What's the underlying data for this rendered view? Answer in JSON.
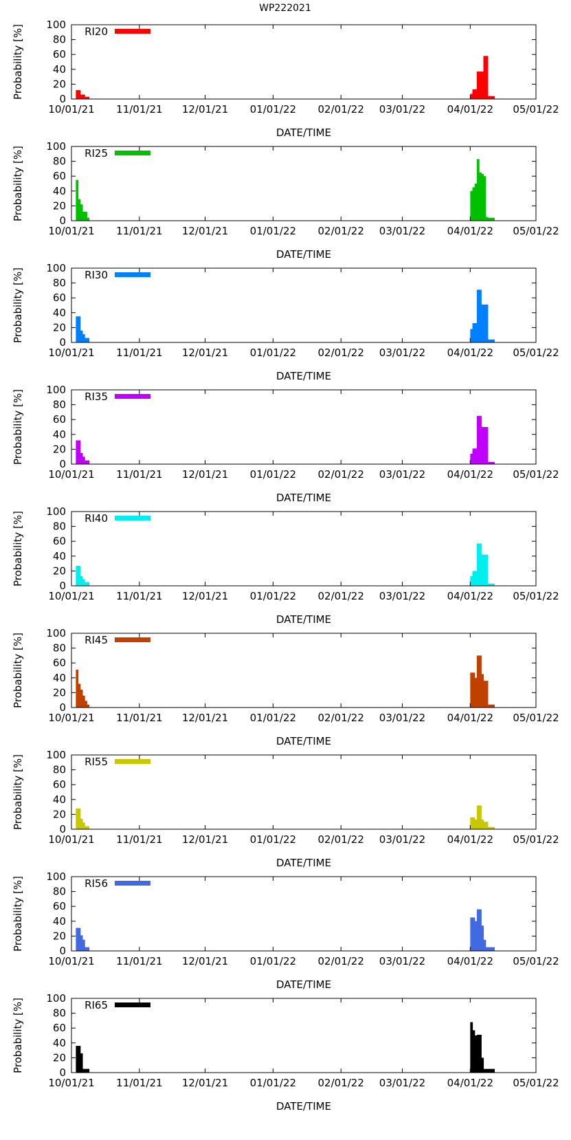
{
  "title": "WP222021",
  "chart_data": [
    {
      "type": "bar",
      "legend": "RI20",
      "color": "#ff0000",
      "xlabel": "DATE/TIME",
      "ylabel": "Probability [%]",
      "ylim": [
        0,
        100
      ],
      "yticks": [
        0,
        20,
        40,
        60,
        80,
        100
      ],
      "xticks": [
        "10/01/21",
        "11/01/21",
        "12/01/21",
        "01/01/22",
        "02/01/22",
        "03/01/22",
        "04/01/22",
        "05/01/22"
      ],
      "bars": [
        {
          "x": "10/03/21",
          "y": 12
        },
        {
          "x": "10/04/21",
          "y": 12
        },
        {
          "x": "10/05/21",
          "y": 6
        },
        {
          "x": "10/06/21",
          "y": 6
        },
        {
          "x": "10/07/21",
          "y": 3
        },
        {
          "x": "10/08/21",
          "y": 3
        },
        {
          "x": "04/01/22",
          "y": 7
        },
        {
          "x": "04/02/22",
          "y": 13
        },
        {
          "x": "04/03/22",
          "y": 13
        },
        {
          "x": "04/04/22",
          "y": 37
        },
        {
          "x": "04/05/22",
          "y": 37
        },
        {
          "x": "04/06/22",
          "y": 37
        },
        {
          "x": "04/07/22",
          "y": 58
        },
        {
          "x": "04/08/22",
          "y": 58
        },
        {
          "x": "04/09/22",
          "y": 4
        },
        {
          "x": "04/10/22",
          "y": 4
        },
        {
          "x": "04/11/22",
          "y": 4
        }
      ]
    },
    {
      "type": "bar",
      "legend": "RI25",
      "color": "#00c000",
      "xlabel": "DATE/TIME",
      "ylabel": "Probability [%]",
      "ylim": [
        0,
        100
      ],
      "yticks": [
        0,
        20,
        40,
        60,
        80,
        100
      ],
      "xticks": [
        "10/01/21",
        "11/01/21",
        "12/01/21",
        "01/01/22",
        "02/01/22",
        "03/01/22",
        "04/01/22",
        "05/01/22"
      ],
      "bars": [
        {
          "x": "10/03/21",
          "y": 55
        },
        {
          "x": "10/04/21",
          "y": 29
        },
        {
          "x": "10/05/21",
          "y": 22
        },
        {
          "x": "10/06/21",
          "y": 12
        },
        {
          "x": "10/07/21",
          "y": 12
        },
        {
          "x": "10/08/21",
          "y": 4
        },
        {
          "x": "04/01/22",
          "y": 40
        },
        {
          "x": "04/02/22",
          "y": 45
        },
        {
          "x": "04/03/22",
          "y": 50
        },
        {
          "x": "04/04/22",
          "y": 83
        },
        {
          "x": "04/05/22",
          "y": 65
        },
        {
          "x": "04/06/22",
          "y": 63
        },
        {
          "x": "04/07/22",
          "y": 60
        },
        {
          "x": "04/08/22",
          "y": 5
        },
        {
          "x": "04/09/22",
          "y": 4
        },
        {
          "x": "04/10/22",
          "y": 4
        },
        {
          "x": "04/11/22",
          "y": 4
        }
      ]
    },
    {
      "type": "bar",
      "legend": "RI30",
      "color": "#0080ff",
      "xlabel": "DATE/TIME",
      "ylabel": "Probability [%]",
      "ylim": [
        0,
        100
      ],
      "yticks": [
        0,
        20,
        40,
        60,
        80,
        100
      ],
      "xticks": [
        "10/01/21",
        "11/01/21",
        "12/01/21",
        "01/01/22",
        "02/01/22",
        "03/01/22",
        "04/01/22",
        "05/01/22"
      ],
      "bars": [
        {
          "x": "10/03/21",
          "y": 35
        },
        {
          "x": "10/04/21",
          "y": 35
        },
        {
          "x": "10/05/21",
          "y": 16
        },
        {
          "x": "10/06/21",
          "y": 11
        },
        {
          "x": "10/07/21",
          "y": 6
        },
        {
          "x": "10/08/21",
          "y": 6
        },
        {
          "x": "04/01/22",
          "y": 18
        },
        {
          "x": "04/02/22",
          "y": 26
        },
        {
          "x": "04/03/22",
          "y": 26
        },
        {
          "x": "04/04/22",
          "y": 71
        },
        {
          "x": "04/05/22",
          "y": 71
        },
        {
          "x": "04/06/22",
          "y": 51
        },
        {
          "x": "04/07/22",
          "y": 51
        },
        {
          "x": "04/08/22",
          "y": 51
        },
        {
          "x": "04/09/22",
          "y": 4
        },
        {
          "x": "04/10/22",
          "y": 4
        },
        {
          "x": "04/11/22",
          "y": 4
        }
      ]
    },
    {
      "type": "bar",
      "legend": "RI35",
      "color": "#c000ff",
      "xlabel": "DATE/TIME",
      "ylabel": "Probability [%]",
      "ylim": [
        0,
        100
      ],
      "yticks": [
        0,
        20,
        40,
        60,
        80,
        100
      ],
      "xticks": [
        "10/01/21",
        "11/01/21",
        "12/01/21",
        "01/01/22",
        "02/01/22",
        "03/01/22",
        "04/01/22",
        "05/01/22"
      ],
      "bars": [
        {
          "x": "10/03/21",
          "y": 32
        },
        {
          "x": "10/04/21",
          "y": 32
        },
        {
          "x": "10/05/21",
          "y": 15
        },
        {
          "x": "10/06/21",
          "y": 10
        },
        {
          "x": "10/07/21",
          "y": 5
        },
        {
          "x": "10/08/21",
          "y": 5
        },
        {
          "x": "04/01/22",
          "y": 14
        },
        {
          "x": "04/02/22",
          "y": 21
        },
        {
          "x": "04/03/22",
          "y": 21
        },
        {
          "x": "04/04/22",
          "y": 65
        },
        {
          "x": "04/05/22",
          "y": 65
        },
        {
          "x": "04/06/22",
          "y": 50
        },
        {
          "x": "04/07/22",
          "y": 50
        },
        {
          "x": "04/08/22",
          "y": 50
        },
        {
          "x": "04/09/22",
          "y": 3
        },
        {
          "x": "04/10/22",
          "y": 3
        },
        {
          "x": "04/11/22",
          "y": 3
        }
      ]
    },
    {
      "type": "bar",
      "legend": "RI40",
      "color": "#00eeee",
      "xlabel": "DATE/TIME",
      "ylabel": "Probability [%]",
      "ylim": [
        0,
        100
      ],
      "yticks": [
        0,
        20,
        40,
        60,
        80,
        100
      ],
      "xticks": [
        "10/01/21",
        "11/01/21",
        "12/01/21",
        "01/01/22",
        "02/01/22",
        "03/01/22",
        "04/01/22",
        "05/01/22"
      ],
      "bars": [
        {
          "x": "10/03/21",
          "y": 27
        },
        {
          "x": "10/04/21",
          "y": 27
        },
        {
          "x": "10/05/21",
          "y": 13
        },
        {
          "x": "10/06/21",
          "y": 9
        },
        {
          "x": "10/07/21",
          "y": 5
        },
        {
          "x": "10/08/21",
          "y": 5
        },
        {
          "x": "04/01/22",
          "y": 13
        },
        {
          "x": "04/02/22",
          "y": 20
        },
        {
          "x": "04/03/22",
          "y": 20
        },
        {
          "x": "04/04/22",
          "y": 57
        },
        {
          "x": "04/05/22",
          "y": 57
        },
        {
          "x": "04/06/22",
          "y": 42
        },
        {
          "x": "04/07/22",
          "y": 42
        },
        {
          "x": "04/08/22",
          "y": 42
        },
        {
          "x": "04/09/22",
          "y": 3
        },
        {
          "x": "04/10/22",
          "y": 3
        },
        {
          "x": "04/11/22",
          "y": 3
        }
      ]
    },
    {
      "type": "bar",
      "legend": "RI45",
      "color": "#c04000",
      "xlabel": "DATE/TIME",
      "ylabel": "Probability [%]",
      "ylim": [
        0,
        100
      ],
      "yticks": [
        0,
        20,
        40,
        60,
        80,
        100
      ],
      "xticks": [
        "10/01/21",
        "11/01/21",
        "12/01/21",
        "01/01/22",
        "02/01/22",
        "03/01/22",
        "04/01/22",
        "05/01/22"
      ],
      "bars": [
        {
          "x": "10/03/21",
          "y": 51
        },
        {
          "x": "10/04/21",
          "y": 32
        },
        {
          "x": "10/05/21",
          "y": 24
        },
        {
          "x": "10/06/21",
          "y": 16
        },
        {
          "x": "10/07/21",
          "y": 9
        },
        {
          "x": "10/08/21",
          "y": 4
        },
        {
          "x": "04/01/22",
          "y": 47
        },
        {
          "x": "04/02/22",
          "y": 47
        },
        {
          "x": "04/03/22",
          "y": 40
        },
        {
          "x": "04/04/22",
          "y": 70
        },
        {
          "x": "04/05/22",
          "y": 70
        },
        {
          "x": "04/06/22",
          "y": 45
        },
        {
          "x": "04/07/22",
          "y": 36
        },
        {
          "x": "04/08/22",
          "y": 36
        },
        {
          "x": "04/09/22",
          "y": 4
        },
        {
          "x": "04/10/22",
          "y": 4
        },
        {
          "x": "04/11/22",
          "y": 4
        }
      ]
    },
    {
      "type": "bar",
      "legend": "RI55",
      "color": "#c8c800",
      "xlabel": "DATE/TIME",
      "ylabel": "Probability [%]",
      "ylim": [
        0,
        100
      ],
      "yticks": [
        0,
        20,
        40,
        60,
        80,
        100
      ],
      "xticks": [
        "10/01/21",
        "11/01/21",
        "12/01/21",
        "01/01/22",
        "02/01/22",
        "03/01/22",
        "04/01/22",
        "05/01/22"
      ],
      "bars": [
        {
          "x": "10/03/21",
          "y": 28
        },
        {
          "x": "10/04/21",
          "y": 28
        },
        {
          "x": "10/05/21",
          "y": 14
        },
        {
          "x": "10/06/21",
          "y": 9
        },
        {
          "x": "10/07/21",
          "y": 4
        },
        {
          "x": "10/08/21",
          "y": 4
        },
        {
          "x": "04/01/22",
          "y": 16
        },
        {
          "x": "04/02/22",
          "y": 16
        },
        {
          "x": "04/03/22",
          "y": 13
        },
        {
          "x": "04/04/22",
          "y": 32
        },
        {
          "x": "04/05/22",
          "y": 32
        },
        {
          "x": "04/06/22",
          "y": 13
        },
        {
          "x": "04/07/22",
          "y": 10
        },
        {
          "x": "04/08/22",
          "y": 10
        },
        {
          "x": "04/09/22",
          "y": 3
        },
        {
          "x": "04/10/22",
          "y": 3
        },
        {
          "x": "04/11/22",
          "y": 3
        }
      ]
    },
    {
      "type": "bar",
      "legend": "RI56",
      "color": "#4169e1",
      "xlabel": "DATE/TIME",
      "ylabel": "Probability [%]",
      "ylim": [
        0,
        100
      ],
      "yticks": [
        0,
        20,
        40,
        60,
        80,
        100
      ],
      "xticks": [
        "10/01/21",
        "11/01/21",
        "12/01/21",
        "01/01/22",
        "02/01/22",
        "03/01/22",
        "04/01/22",
        "05/01/22"
      ],
      "bars": [
        {
          "x": "10/03/21",
          "y": 31
        },
        {
          "x": "10/04/21",
          "y": 31
        },
        {
          "x": "10/05/21",
          "y": 21
        },
        {
          "x": "10/06/21",
          "y": 15
        },
        {
          "x": "10/07/21",
          "y": 5
        },
        {
          "x": "10/08/21",
          "y": 5
        },
        {
          "x": "04/01/22",
          "y": 45
        },
        {
          "x": "04/02/22",
          "y": 45
        },
        {
          "x": "04/03/22",
          "y": 40
        },
        {
          "x": "04/04/22",
          "y": 56
        },
        {
          "x": "04/05/22",
          "y": 56
        },
        {
          "x": "04/06/22",
          "y": 34
        },
        {
          "x": "04/07/22",
          "y": 15
        },
        {
          "x": "04/08/22",
          "y": 5
        },
        {
          "x": "04/09/22",
          "y": 5
        },
        {
          "x": "04/10/22",
          "y": 5
        },
        {
          "x": "04/11/22",
          "y": 5
        }
      ]
    },
    {
      "type": "bar",
      "legend": "RI65",
      "color": "#000000",
      "xlabel": "DATE/TIME",
      "ylabel": "Probability [%]",
      "ylim": [
        0,
        100
      ],
      "yticks": [
        0,
        20,
        40,
        60,
        80,
        100
      ],
      "xticks": [
        "10/01/21",
        "11/01/21",
        "12/01/21",
        "01/01/22",
        "02/01/22",
        "03/01/22",
        "04/01/22",
        "05/01/22"
      ],
      "bars": [
        {
          "x": "10/03/21",
          "y": 36
        },
        {
          "x": "10/04/21",
          "y": 36
        },
        {
          "x": "10/05/21",
          "y": 26
        },
        {
          "x": "10/06/21",
          "y": 5
        },
        {
          "x": "10/07/21",
          "y": 5
        },
        {
          "x": "10/08/21",
          "y": 5
        },
        {
          "x": "04/01/22",
          "y": 68
        },
        {
          "x": "04/02/22",
          "y": 57
        },
        {
          "x": "04/03/22",
          "y": 50
        },
        {
          "x": "04/04/22",
          "y": 51
        },
        {
          "x": "04/05/22",
          "y": 51
        },
        {
          "x": "04/06/22",
          "y": 20
        },
        {
          "x": "04/07/22",
          "y": 5
        },
        {
          "x": "04/08/22",
          "y": 5
        },
        {
          "x": "04/09/22",
          "y": 5
        },
        {
          "x": "04/10/22",
          "y": 5
        },
        {
          "x": "04/11/22",
          "y": 5
        }
      ]
    }
  ]
}
